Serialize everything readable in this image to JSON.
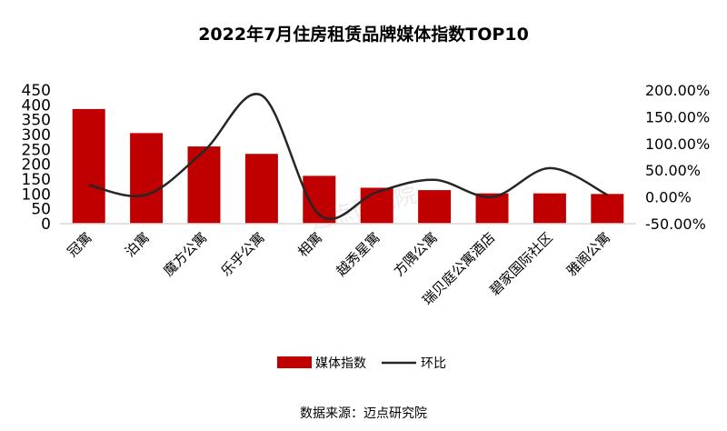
{
  "chart_data": {
    "type": "bar+line",
    "title": "2022年7月住房租赁品牌媒体指数TOP10",
    "categories": [
      "冠寓",
      "泊寓",
      "魔方公寓",
      "乐乎公寓",
      "相寓",
      "越秀星寓",
      "方隅公寓",
      "瑞贝庭公寓酒店",
      "碧家国际社区",
      "雅阁公寓"
    ],
    "series": [
      {
        "name": "媒体指数",
        "type": "bar",
        "axis": "left",
        "color": "#C00000",
        "values": [
          386,
          305,
          260,
          235,
          161,
          121,
          113,
          102,
          102,
          100
        ]
      },
      {
        "name": "环比",
        "type": "line",
        "axis": "right",
        "color": "#262626",
        "values": [
          22,
          4,
          86,
          190,
          -33,
          9,
          32,
          0,
          54,
          4
        ]
      }
    ],
    "left_axis": {
      "ylim": [
        0,
        450
      ],
      "ticks": [
        "0",
        "50",
        "100",
        "150",
        "200",
        "250",
        "300",
        "350",
        "400",
        "450"
      ]
    },
    "right_axis": {
      "ylim": [
        -50,
        200
      ],
      "ticks": [
        "-50.00%",
        "0.00%",
        "50.00%",
        "100.00%",
        "150.00%",
        "200.00%"
      ]
    },
    "legend": "bottom",
    "grid": false,
    "source": "数据来源：迈点研究院",
    "watermark": "迈点研究院"
  }
}
